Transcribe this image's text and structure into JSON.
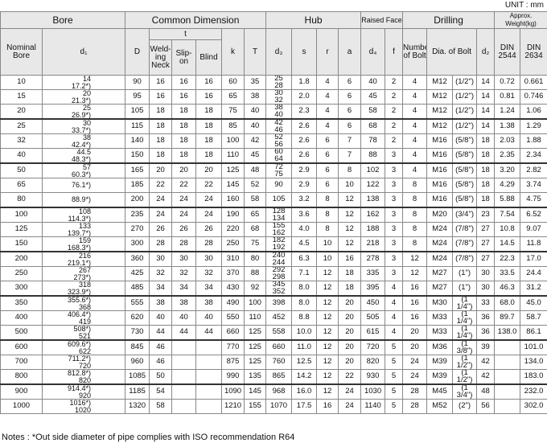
{
  "unit": "UNIT : mm",
  "header": {
    "bore": "Bore",
    "common": "Common Dimension",
    "hub": "Hub",
    "raised": "Raised Face",
    "drilling": "Drilling",
    "weight": "Approx. Weight(kg)",
    "nominal": "Nominal Bore",
    "d1": "d₁",
    "D": "D",
    "t": "t",
    "weld": "Weld-ing Neck",
    "slip": "Slip-on",
    "blind": "Blind",
    "k": "k",
    "T": "T",
    "d3": "d₃",
    "s": "s",
    "r": "r",
    "a": "a",
    "d4": "d₄",
    "f": "f",
    "nbolt": "Number of Bolt",
    "dia": "Dia. of Bolt",
    "d2": "d₂",
    "din1": "DIN 2544",
    "din2": "DIN 2634"
  },
  "body": [
    [
      [
        "10",
        [
          "14",
          "17.2*)"
        ],
        "90",
        "16",
        "16",
        "16",
        "60",
        "35",
        [
          "25",
          "28"
        ],
        "1.8",
        "4",
        "6",
        "40",
        "2",
        "4",
        "M12",
        "(1/2\")",
        "14",
        "0.72",
        "0.661"
      ],
      [
        "15",
        [
          "20",
          "21.3*)"
        ],
        "95",
        "16",
        "16",
        "16",
        "65",
        "38",
        [
          "30",
          "32"
        ],
        "2.0",
        "4",
        "6",
        "45",
        "2",
        "4",
        "M12",
        "(1/2\")",
        "14",
        "0.81",
        "0.746"
      ],
      [
        "20",
        [
          "25",
          "26.9*)"
        ],
        "105",
        "18",
        "18",
        "18",
        "75",
        "40",
        [
          "38",
          "40"
        ],
        "2.3",
        "4",
        "6",
        "58",
        "2",
        "4",
        "M12",
        "(1/2\")",
        "14",
        "1.24",
        "1.06"
      ]
    ],
    [
      [
        "25",
        [
          "30",
          "33.7*)"
        ],
        "115",
        "18",
        "18",
        "18",
        "85",
        "40",
        [
          "42",
          "46"
        ],
        "2.6",
        "4",
        "6",
        "68",
        "2",
        "4",
        "M12",
        "(1/2\")",
        "14",
        "1.38",
        "1.29"
      ],
      [
        "32",
        [
          "38",
          "42.4*)"
        ],
        "140",
        "18",
        "18",
        "18",
        "100",
        "42",
        [
          "52",
          "56"
        ],
        "2.6",
        "6",
        "7",
        "78",
        "2",
        "4",
        "M16",
        "(5/8\")",
        "18",
        "2.03",
        "1.88"
      ],
      [
        "40",
        [
          "44.5",
          "48.3*)"
        ],
        "150",
        "18",
        "18",
        "18",
        "110",
        "45",
        [
          "60",
          "64"
        ],
        "2.6",
        "6",
        "7",
        "88",
        "3",
        "4",
        "M16",
        "(5/8\")",
        "18",
        "2.35",
        "2.34"
      ]
    ],
    [
      [
        "50",
        [
          "57",
          "60.3*)"
        ],
        "165",
        "20",
        "20",
        "20",
        "125",
        "48",
        [
          "72",
          "75"
        ],
        "2.9",
        "6",
        "8",
        "102",
        "3",
        "4",
        "M16",
        "(5/8\")",
        "18",
        "3.20",
        "2.82"
      ],
      [
        "65",
        [
          "76.1*)"
        ],
        "185",
        "22",
        "22",
        "22",
        "145",
        "52",
        "90",
        "2.9",
        "6",
        "10",
        "122",
        "3",
        "8",
        "M16",
        "(5/8\")",
        "18",
        "4.29",
        "3.74"
      ],
      [
        "80",
        [
          "88.9*)"
        ],
        "200",
        "24",
        "24",
        "24",
        "160",
        "58",
        "105",
        "3.2",
        "8",
        "12",
        "138",
        "3",
        "8",
        "M16",
        "(5/8\")",
        "18",
        "5.88",
        "4.75"
      ]
    ],
    [
      [
        "100",
        [
          "108",
          "114.3*)"
        ],
        "235",
        "24",
        "24",
        "24",
        "190",
        "65",
        [
          "128",
          "134"
        ],
        "3.6",
        "8",
        "12",
        "162",
        "3",
        "8",
        "M20",
        "(3/4\")",
        "23",
        "7.54",
        "6.52"
      ],
      [
        "125",
        [
          "133",
          "139.7*)"
        ],
        "270",
        "26",
        "26",
        "26",
        "220",
        "68",
        [
          "155",
          "162"
        ],
        "4.0",
        "8",
        "12",
        "188",
        "3",
        "8",
        "M24",
        "(7/8\")",
        "27",
        "10.8",
        "9.07"
      ],
      [
        "150",
        [
          "159",
          "168.3*)"
        ],
        "300",
        "28",
        "28",
        "28",
        "250",
        "75",
        [
          "182",
          "192"
        ],
        "4.5",
        "10",
        "12",
        "218",
        "3",
        "8",
        "M24",
        "(7/8\")",
        "27",
        "14.5",
        "11.8"
      ]
    ],
    [
      [
        "200",
        [
          "216",
          "219.1*)"
        ],
        "360",
        "30",
        "30",
        "30",
        "310",
        "80",
        [
          "240",
          "244"
        ],
        "6.3",
        "10",
        "16",
        "278",
        "3",
        "12",
        "M24",
        "(7/8\")",
        "27",
        "22.3",
        "17.0"
      ],
      [
        "250",
        [
          "267",
          "273*)"
        ],
        "425",
        "32",
        "32",
        "32",
        "370",
        "88",
        [
          "292",
          "298"
        ],
        "7.1",
        "12",
        "18",
        "335",
        "3",
        "12",
        "M27",
        "(1\")",
        "30",
        "33.5",
        "24.4"
      ],
      [
        "300",
        [
          "318",
          "323.9*)"
        ],
        "485",
        "34",
        "34",
        "34",
        "430",
        "92",
        [
          "345",
          "352"
        ],
        "8.0",
        "12",
        "18",
        "395",
        "4",
        "16",
        "M27",
        "(1\")",
        "30",
        "46.3",
        "31.2"
      ]
    ],
    [
      [
        "350",
        [
          "355.6*)",
          "368"
        ],
        "555",
        "38",
        "38",
        "38",
        "490",
        "100",
        "398",
        "8.0",
        "12",
        "20",
        "450",
        "4",
        "16",
        "M30",
        "(1 1/4\")",
        "33",
        "68.0",
        "45.0"
      ],
      [
        "400",
        [
          "406.4*)",
          "419"
        ],
        "620",
        "40",
        "40",
        "40",
        "550",
        "110",
        "452",
        "8.8",
        "12",
        "20",
        "505",
        "4",
        "16",
        "M33",
        "(1 1/4\")",
        "36",
        "89.7",
        "58.7"
      ],
      [
        "500",
        [
          "508*)",
          "521"
        ],
        "730",
        "44",
        "44",
        "44",
        "660",
        "125",
        "558",
        "10.0",
        "12",
        "20",
        "615",
        "4",
        "20",
        "M33",
        "(1 1/4\")",
        "36",
        "138.0",
        "86.1"
      ]
    ],
    [
      [
        "600",
        [
          "609.6*)",
          "622"
        ],
        "845",
        "46",
        null,
        null,
        "770",
        "125",
        "660",
        "11.0",
        "12",
        "20",
        "720",
        "5",
        "20",
        "M36",
        "(1 3/8\")",
        "39",
        null,
        "101.0"
      ],
      [
        "700",
        [
          "711.2*)",
          "720"
        ],
        "960",
        "46",
        null,
        null,
        "875",
        "125",
        "760",
        "12.5",
        "12",
        "20",
        "820",
        "5",
        "24",
        "M39",
        "(1 1/2\")",
        "42",
        null,
        "134.0"
      ],
      [
        "800",
        [
          "812.8*)",
          "820"
        ],
        "1085",
        "50",
        null,
        null,
        "990",
        "135",
        "865",
        "14.2",
        "12",
        "22",
        "930",
        "5",
        "24",
        "M39",
        "(1 1/2\")",
        "42",
        null,
        "183.0"
      ]
    ],
    [
      [
        "900",
        [
          "914.4*)",
          "920"
        ],
        "1185",
        "54",
        null,
        null,
        "1090",
        "145",
        "968",
        "16.0",
        "12",
        "24",
        "1030",
        "5",
        "28",
        "M45",
        "(1 3/4\")",
        "48",
        null,
        "232.0"
      ],
      [
        "1000",
        [
          "1016*)",
          "1020"
        ],
        "1320",
        "58",
        null,
        null,
        "1210",
        "155",
        "1070",
        "17.5",
        "16",
        "24",
        "1140",
        "5",
        "28",
        "M52",
        "(2\")",
        "56",
        null,
        "302.0"
      ]
    ]
  ],
  "notes": "Notes : *Out side diameter of pipe complies with ISO recommendation R64"
}
